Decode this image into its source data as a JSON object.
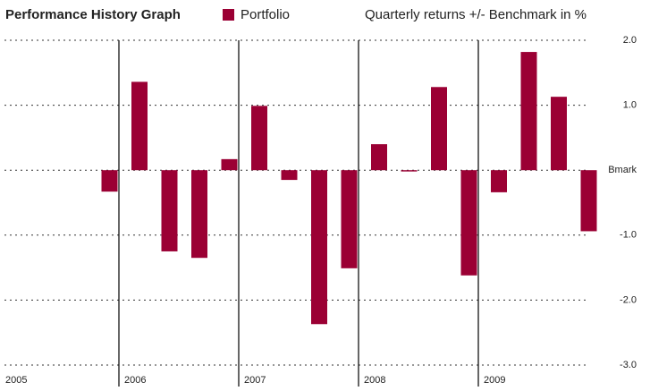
{
  "chart_data": {
    "type": "bar",
    "title": "Performance History Graph",
    "subtitle": "Quarterly returns +/- Benchmark in %",
    "categories": [
      "2005",
      null,
      null,
      null,
      "2006",
      null,
      null,
      null,
      "2007",
      null,
      null,
      null,
      "2008",
      null,
      null,
      null,
      "2009",
      null,
      null,
      null
    ],
    "series": [
      {
        "name": "Portfolio",
        "color": "#9b0034",
        "values": [
          null,
          null,
          null,
          -0.33,
          1.36,
          -1.25,
          -1.35,
          0.17,
          0.99,
          -0.15,
          -2.37,
          -1.51,
          0.4,
          -0.02,
          1.28,
          -1.62,
          -0.34,
          1.82,
          1.13,
          -0.94
        ]
      }
    ],
    "ylim": [
      -3,
      2
    ],
    "yticks": [
      {
        "value": 2,
        "label": "2.0"
      },
      {
        "value": 1,
        "label": "1.0"
      },
      {
        "value": 0,
        "label": "Bmark"
      },
      {
        "value": -1,
        "label": "-1.0"
      },
      {
        "value": -2,
        "label": "-2.0"
      },
      {
        "value": -3,
        "label": "-3.0"
      }
    ],
    "grid": true
  }
}
